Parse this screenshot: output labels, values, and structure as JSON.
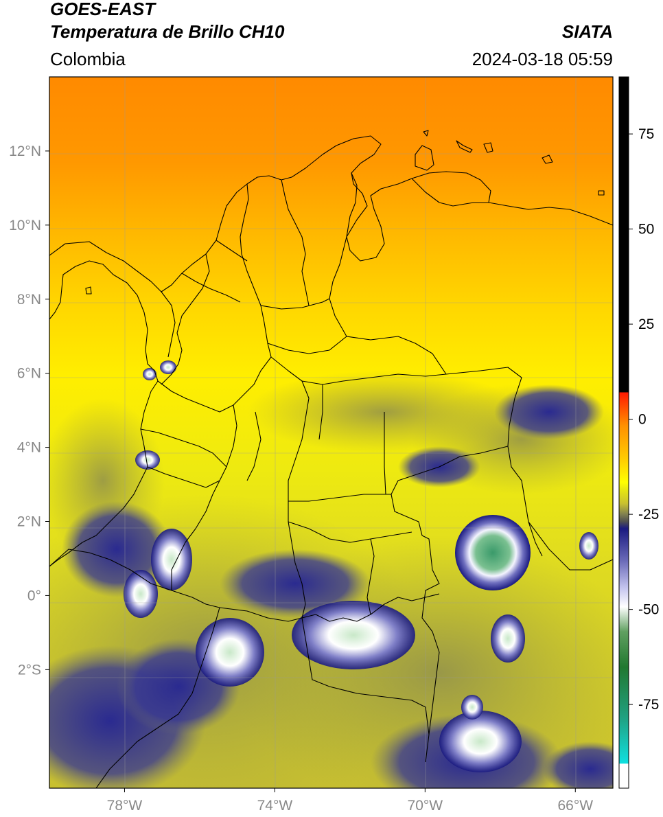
{
  "header": {
    "satellite": "GOES-EAST",
    "product": "Temperatura de Brillo CH10",
    "source": "SIATA",
    "region": "Colombia",
    "datetime": "2024-03-18 05:59"
  },
  "map": {
    "lon_range": [
      -80,
      -65
    ],
    "lat_range": [
      -5.2,
      14
    ],
    "lon_ticks": [
      {
        "value": -78,
        "label": "78°W"
      },
      {
        "value": -74,
        "label": "74°W"
      },
      {
        "value": -70,
        "label": "70°W"
      },
      {
        "value": -66,
        "label": "66°W"
      }
    ],
    "lat_ticks": [
      {
        "value": 12,
        "label": "12°N"
      },
      {
        "value": 10,
        "label": "10°N"
      },
      {
        "value": 8,
        "label": "8°N"
      },
      {
        "value": 6,
        "label": "6°N"
      },
      {
        "value": 4,
        "label": "4°N"
      },
      {
        "value": 2,
        "label": "2°N"
      },
      {
        "value": 0,
        "label": "0°"
      },
      {
        "value": -2,
        "label": "2°S"
      }
    ]
  },
  "colorbar": {
    "range": [
      -97,
      90
    ],
    "tick_values": [
      75,
      50,
      25,
      0,
      -25,
      -50,
      -75
    ],
    "tick_labels": [
      "75",
      "50",
      "25",
      "0",
      "-25",
      "-50",
      "-75"
    ]
  },
  "colors": {
    "warm_orange": "#ff8c00",
    "yellow": "#ffff00",
    "olive": "#b8b030",
    "navy": "#1a1a80",
    "green": "#3a9050",
    "cyan": "#10d8d8",
    "red": "#ff0000",
    "black": "#000000"
  }
}
